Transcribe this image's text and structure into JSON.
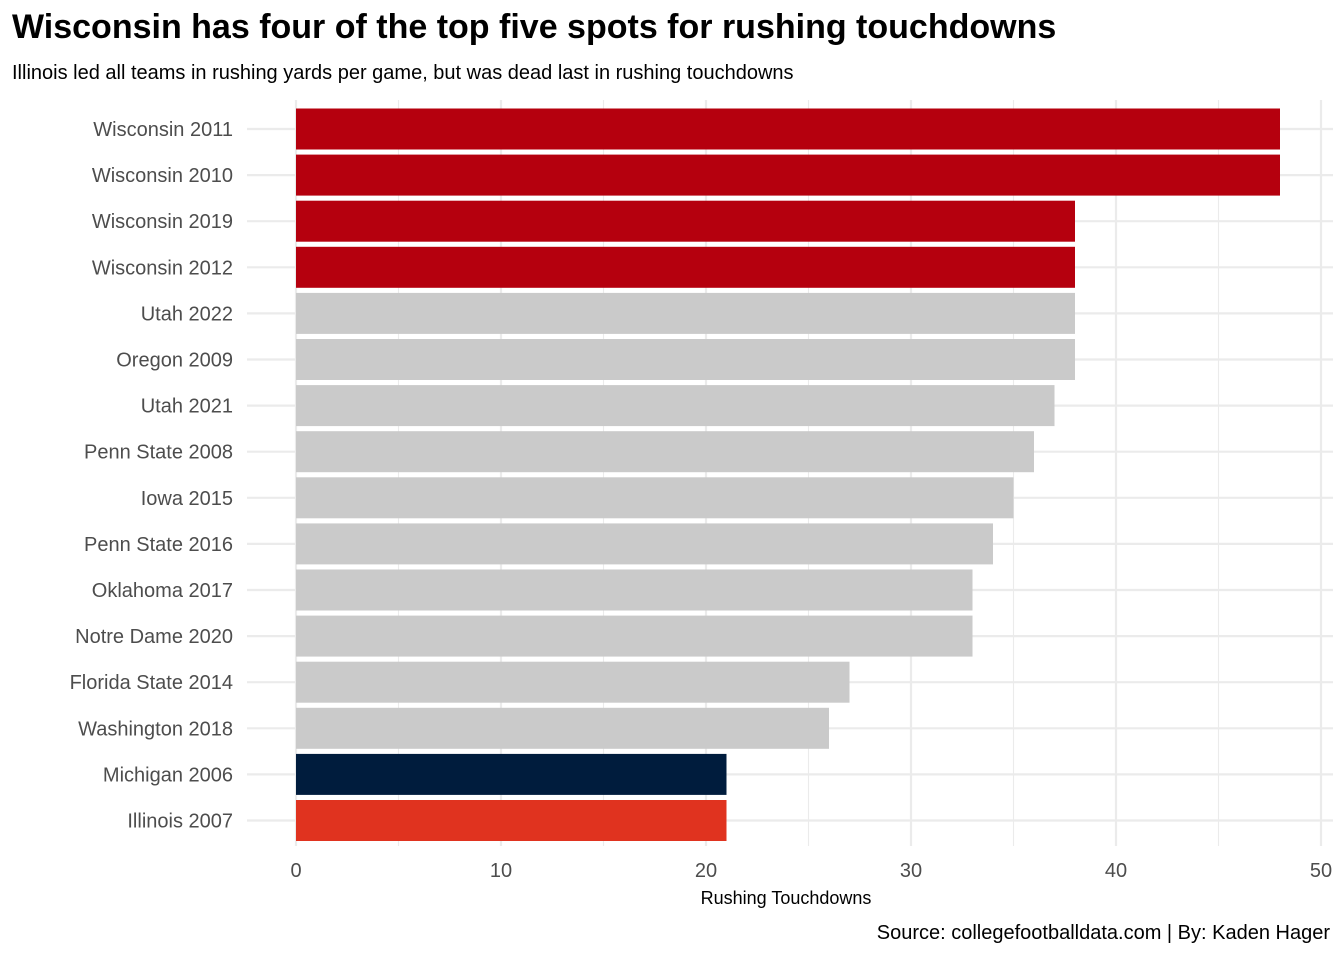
{
  "chart_data": {
    "type": "bar",
    "orientation": "horizontal",
    "title": "Wisconsin has four of the top five spots for rushing touchdowns",
    "subtitle": "Illinois led all teams in rushing yards per game, but was dead last in rushing touchdowns",
    "xlabel": "Rushing Touchdowns",
    "ylabel": "",
    "caption": "Source: collegefootballdata.com | By: Kaden Hager",
    "xlim": [
      0,
      50
    ],
    "x_ticks": [
      0,
      10,
      20,
      30,
      40,
      50
    ],
    "grid": true,
    "legend": "none",
    "categories": [
      "Wisconsin 2011",
      "Wisconsin 2010",
      "Wisconsin 2019",
      "Wisconsin 2012",
      "Utah 2022",
      "Oregon 2009",
      "Utah 2021",
      "Penn State 2008",
      "Iowa 2015",
      "Penn State 2016",
      "Oklahoma 2017",
      "Notre Dame 2020",
      "Florida State 2014",
      "Washington 2018",
      "Michigan 2006",
      "Illinois 2007"
    ],
    "values": [
      48,
      48,
      38,
      38,
      38,
      38,
      37,
      36,
      35,
      34,
      33,
      33,
      27,
      26,
      21,
      21
    ],
    "colors": [
      "#b5000e",
      "#b5000e",
      "#b5000e",
      "#b5000e",
      "#cacaca",
      "#cacaca",
      "#cacaca",
      "#cacaca",
      "#cacaca",
      "#cacaca",
      "#cacaca",
      "#cacaca",
      "#cacaca",
      "#cacaca",
      "#001c3d",
      "#e0331f"
    ],
    "grid_color": "#ebebeb"
  }
}
